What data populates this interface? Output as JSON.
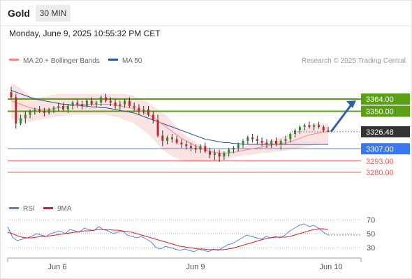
{
  "header": {
    "instrument": "Gold",
    "timeframe": "30 MIN",
    "datetime": "Monday, June 9, 2025 10:55:32 PM CET"
  },
  "price_panel": {
    "legend": [
      {
        "label": "MA 20 + Bollinger Bands",
        "color": "#f08a8a"
      },
      {
        "label": "MA 50",
        "color": "#2f5597"
      }
    ],
    "credit": "Research © 2025 Trading Central",
    "levels": [
      {
        "value": "3364.00",
        "price": 3364.0,
        "color": "#5aa012",
        "kind": "resistance",
        "filled": true
      },
      {
        "value": "3350.00",
        "price": 3350.0,
        "color": "#5aa012",
        "kind": "resistance",
        "filled": true
      },
      {
        "value": "3326.48",
        "price": 3326.48,
        "color": "#333333",
        "kind": "last",
        "filled": true
      },
      {
        "value": "3307.00",
        "price": 3307.0,
        "color": "#3a78f2",
        "kind": "pivot",
        "filled": true
      },
      {
        "value": "3293.00",
        "price": 3293.0,
        "color": "#e06060",
        "kind": "support",
        "filled": false
      },
      {
        "value": "3280.00",
        "price": 3280.0,
        "color": "#e06060",
        "kind": "support",
        "filled": false
      }
    ],
    "arrow_color": "#2f5fa8"
  },
  "rsi_panel": {
    "legend": [
      {
        "label": "RSI",
        "color": "#5b7fdb"
      },
      {
        "label": "9MA",
        "color": "#d62020"
      }
    ],
    "ticks": [
      "70",
      "50",
      "30"
    ]
  },
  "x_axis": {
    "labels": [
      "Jun 6",
      "Jun 9",
      "Jun 10"
    ]
  },
  "chart_data": [
    {
      "type": "candlestick",
      "title": "Gold",
      "ylim": [
        3268,
        3388
      ],
      "support_resistance": [
        3364.0,
        3350.0,
        3307.0,
        3293.0,
        3280.0
      ],
      "last_price": 3326.48,
      "candles": [
        [
          3372,
          3378,
          3364,
          3366
        ],
        [
          3366,
          3370,
          3330,
          3336
        ],
        [
          3336,
          3346,
          3334,
          3342
        ],
        [
          3342,
          3350,
          3336,
          3346
        ],
        [
          3346,
          3352,
          3342,
          3350
        ],
        [
          3350,
          3354,
          3346,
          3352
        ],
        [
          3352,
          3356,
          3348,
          3350
        ],
        [
          3350,
          3354,
          3344,
          3348
        ],
        [
          3348,
          3354,
          3346,
          3352
        ],
        [
          3352,
          3356,
          3348,
          3354
        ],
        [
          3354,
          3360,
          3350,
          3356
        ],
        [
          3356,
          3360,
          3350,
          3352
        ],
        [
          3352,
          3358,
          3348,
          3356
        ],
        [
          3356,
          3362,
          3352,
          3360
        ],
        [
          3360,
          3364,
          3354,
          3358
        ],
        [
          3358,
          3362,
          3352,
          3356
        ],
        [
          3356,
          3364,
          3354,
          3362
        ],
        [
          3362,
          3366,
          3356,
          3358
        ],
        [
          3358,
          3362,
          3354,
          3360
        ],
        [
          3360,
          3368,
          3356,
          3366
        ],
        [
          3366,
          3370,
          3360,
          3362
        ],
        [
          3362,
          3366,
          3356,
          3360
        ],
        [
          3360,
          3364,
          3352,
          3356
        ],
        [
          3356,
          3362,
          3352,
          3358
        ],
        [
          3358,
          3364,
          3354,
          3362
        ],
        [
          3362,
          3366,
          3354,
          3356
        ],
        [
          3356,
          3360,
          3350,
          3354
        ],
        [
          3354,
          3358,
          3346,
          3350
        ],
        [
          3350,
          3356,
          3346,
          3352
        ],
        [
          3352,
          3356,
          3344,
          3346
        ],
        [
          3346,
          3350,
          3336,
          3340
        ],
        [
          3340,
          3346,
          3320,
          3322
        ],
        [
          3322,
          3328,
          3310,
          3316
        ],
        [
          3316,
          3322,
          3312,
          3320
        ],
        [
          3320,
          3324,
          3314,
          3318
        ],
        [
          3318,
          3322,
          3312,
          3314
        ],
        [
          3314,
          3318,
          3308,
          3312
        ],
        [
          3312,
          3316,
          3306,
          3310
        ],
        [
          3310,
          3314,
          3304,
          3308
        ],
        [
          3308,
          3312,
          3302,
          3306
        ],
        [
          3306,
          3312,
          3302,
          3310
        ],
        [
          3310,
          3314,
          3302,
          3304
        ],
        [
          3304,
          3308,
          3296,
          3300
        ],
        [
          3300,
          3306,
          3294,
          3302
        ],
        [
          3302,
          3306,
          3292,
          3298
        ],
        [
          3298,
          3304,
          3294,
          3302
        ],
        [
          3302,
          3308,
          3298,
          3306
        ],
        [
          3306,
          3310,
          3302,
          3308
        ],
        [
          3308,
          3314,
          3304,
          3312
        ],
        [
          3312,
          3318,
          3308,
          3316
        ],
        [
          3316,
          3322,
          3312,
          3320
        ],
        [
          3320,
          3324,
          3314,
          3318
        ],
        [
          3318,
          3322,
          3312,
          3316
        ],
        [
          3316,
          3320,
          3310,
          3314
        ],
        [
          3314,
          3318,
          3308,
          3312
        ],
        [
          3312,
          3318,
          3308,
          3316
        ],
        [
          3316,
          3320,
          3310,
          3312
        ],
        [
          3312,
          3318,
          3306,
          3316
        ],
        [
          3316,
          3322,
          3312,
          3318
        ],
        [
          3318,
          3326,
          3314,
          3324
        ],
        [
          3324,
          3330,
          3320,
          3328
        ],
        [
          3328,
          3334,
          3324,
          3332
        ],
        [
          3332,
          3336,
          3328,
          3334
        ],
        [
          3334,
          3338,
          3330,
          3332
        ],
        [
          3332,
          3336,
          3328,
          3334
        ],
        [
          3334,
          3338,
          3330,
          3332
        ],
        [
          3332,
          3334,
          3326,
          3328
        ],
        [
          3328,
          3332,
          3326,
          3326
        ]
      ],
      "ma20": [
        3362,
        3360,
        3358,
        3356,
        3354,
        3353,
        3352,
        3352,
        3352,
        3353,
        3354,
        3355,
        3356,
        3357,
        3358,
        3358,
        3358,
        3358,
        3358,
        3358,
        3358,
        3358,
        3357,
        3356,
        3355,
        3354,
        3353,
        3351,
        3349,
        3346,
        3343,
        3339,
        3335,
        3331,
        3327,
        3323,
        3319,
        3316,
        3313,
        3310,
        3308,
        3306,
        3304,
        3303,
        3302,
        3302,
        3302,
        3303,
        3304,
        3305,
        3306,
        3307,
        3308,
        3309,
        3310,
        3311,
        3312,
        3313,
        3314,
        3315,
        3317,
        3319,
        3321,
        3323,
        3324,
        3325,
        3326,
        3327
      ],
      "ma50": [
        3374,
        3372,
        3370,
        3368,
        3366,
        3364,
        3363,
        3362,
        3361,
        3360,
        3359,
        3358,
        3358,
        3357,
        3357,
        3356,
        3356,
        3355,
        3355,
        3354,
        3354,
        3353,
        3352,
        3351,
        3350,
        3349,
        3348,
        3346,
        3344,
        3342,
        3340,
        3338,
        3336,
        3334,
        3332,
        3330,
        3328,
        3326,
        3324,
        3322,
        3320,
        3318,
        3317,
        3316,
        3315,
        3314,
        3314,
        3313,
        3313,
        3312,
        3312,
        3312,
        3312,
        3312,
        3312,
        3312,
        3312,
        3312,
        3312,
        3312,
        3312,
        3312,
        3312,
        3312,
        3312,
        3312,
        3312,
        3312
      ],
      "bb_upper": [
        3382,
        3380,
        3376,
        3372,
        3368,
        3366,
        3366,
        3367,
        3368,
        3369,
        3370,
        3370,
        3370,
        3370,
        3370,
        3370,
        3370,
        3370,
        3370,
        3370,
        3370,
        3370,
        3370,
        3370,
        3370,
        3369,
        3367,
        3365,
        3363,
        3360,
        3356,
        3352,
        3348,
        3344,
        3338,
        3332,
        3326,
        3322,
        3318,
        3314,
        3312,
        3310,
        3308,
        3306,
        3305,
        3304,
        3304,
        3305,
        3307,
        3309,
        3311,
        3312,
        3314,
        3315,
        3316,
        3317,
        3318,
        3320,
        3322,
        3324,
        3326,
        3328,
        3331,
        3334,
        3336,
        3336,
        3336,
        3336
      ],
      "bb_lower": [
        3342,
        3340,
        3338,
        3338,
        3338,
        3339,
        3340,
        3341,
        3342,
        3343,
        3344,
        3345,
        3346,
        3346,
        3346,
        3346,
        3346,
        3346,
        3346,
        3346,
        3346,
        3345,
        3344,
        3342,
        3340,
        3338,
        3336,
        3332,
        3328,
        3324,
        3318,
        3312,
        3306,
        3302,
        3298,
        3296,
        3294,
        3293,
        3292,
        3292,
        3292,
        3292,
        3292,
        3293,
        3294,
        3295,
        3296,
        3297,
        3298,
        3299,
        3300,
        3300,
        3301,
        3302,
        3302,
        3303,
        3304,
        3304,
        3305,
        3306,
        3307,
        3308,
        3309,
        3310,
        3311,
        3312,
        3312,
        3312
      ]
    },
    {
      "type": "line",
      "title": "RSI",
      "ylim": [
        20,
        80
      ],
      "yticks": [
        70,
        50,
        30
      ],
      "series": [
        {
          "name": "RSI",
          "values": [
            60,
            45,
            40,
            42,
            44,
            46,
            50,
            48,
            46,
            50,
            52,
            54,
            50,
            56,
            54,
            52,
            58,
            56,
            54,
            60,
            56,
            54,
            50,
            52,
            54,
            48,
            46,
            44,
            46,
            42,
            38,
            30,
            28,
            32,
            30,
            28,
            26,
            28,
            26,
            24,
            28,
            26,
            24,
            28,
            26,
            30,
            34,
            36,
            40,
            44,
            48,
            46,
            44,
            42,
            46,
            44,
            46,
            44,
            48,
            54,
            58,
            62,
            64,
            60,
            62,
            58,
            52,
            48
          ]
        },
        {
          "name": "9MA",
          "values": [
            52,
            50,
            47,
            45,
            44,
            44,
            45,
            46,
            46,
            47,
            48,
            49,
            50,
            51,
            52,
            53,
            54,
            54,
            55,
            56,
            56,
            56,
            55,
            55,
            54,
            53,
            52,
            50,
            48,
            46,
            44,
            42,
            40,
            38,
            36,
            34,
            32,
            31,
            30,
            29,
            28,
            28,
            27,
            27,
            27,
            27,
            28,
            29,
            31,
            33,
            35,
            37,
            39,
            41,
            43,
            44,
            45,
            45,
            45,
            46,
            48,
            50,
            52,
            54,
            56,
            57,
            57,
            56
          ]
        }
      ]
    }
  ]
}
